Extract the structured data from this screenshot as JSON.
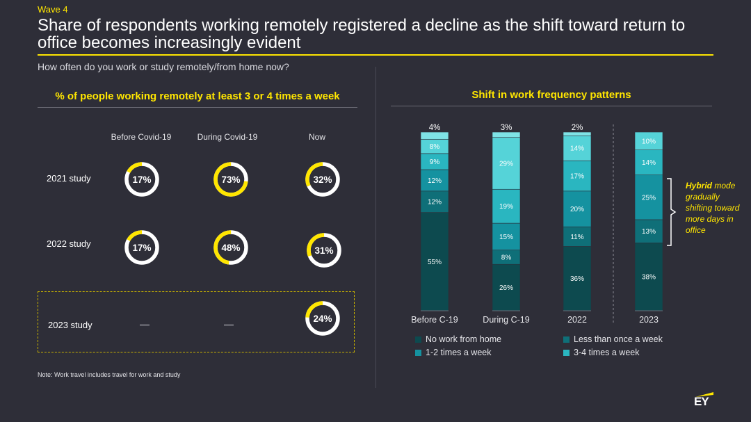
{
  "wave": "Wave 4",
  "title": "Share of respondents working remotely registered a decline as the shift toward return to office becomes increasingly evident",
  "question": "How often do you work or study remotely/from home now?",
  "left_panel": {
    "title": "% of people working remotely at least 3 or 4 times a week",
    "columns": [
      "Before Covid-19",
      "During Covid-19",
      "Now"
    ],
    "rows": [
      {
        "label": "2021 study",
        "values": [
          "17%",
          "73%",
          "32%"
        ],
        "fractions": [
          0.17,
          0.73,
          0.32
        ]
      },
      {
        "label": "2022 study",
        "values": [
          "17%",
          "48%",
          "31%"
        ],
        "fractions": [
          0.17,
          0.48,
          0.31
        ]
      },
      {
        "label": "2023 study",
        "values": [
          "—",
          "—",
          "24%"
        ],
        "fractions": [
          null,
          null,
          0.24
        ]
      }
    ]
  },
  "note": "Note: Work travel includes travel for work and study",
  "right_panel": {
    "title": "Shift in work frequency patterns",
    "hybrid_note_bold": "Hybrid",
    "hybrid_note_rest": "mode gradually shifting toward more days in office"
  },
  "colors": {
    "background": "#2e2e38",
    "accent": "#ffe600",
    "no_work_from_home": "#0d4a4f",
    "less_than_once_a_week": "#0f6f78",
    "one_two_times": "#1592a0",
    "three_four_times": "#2ab6c0",
    "top_segment": "#55d3d8",
    "ring_track": "#ffffff"
  },
  "chart_data": {
    "type": "bar",
    "stacked": true,
    "categories": [
      "Before C-19",
      "During C-19",
      "2022",
      "2023"
    ],
    "series": [
      {
        "name": "No work from home",
        "values": [
          55,
          26,
          36,
          38
        ],
        "labels": [
          "55%",
          "26%",
          "36%",
          "38%"
        ],
        "color": "#0d4a4f"
      },
      {
        "name": "Less than once a week",
        "values": [
          12,
          8,
          11,
          13
        ],
        "labels": [
          "12%",
          "8%",
          "11%",
          "13%"
        ],
        "color": "#0f6f78"
      },
      {
        "name": "1-2 times a week",
        "values": [
          12,
          15,
          20,
          25
        ],
        "labels": [
          "12%",
          "15%",
          "20%",
          "25%"
        ],
        "color": "#1592a0"
      },
      {
        "name": "3-4 times a week",
        "values": [
          9,
          19,
          17,
          14
        ],
        "labels": [
          "9%",
          "19%",
          "17%",
          "14%"
        ],
        "color": "#2ab6c0"
      },
      {
        "values": [
          8,
          29,
          14,
          10
        ],
        "labels": [
          "8%",
          "29%",
          "14%",
          "10%"
        ],
        "color": "#55d3d8"
      },
      {
        "values": [
          4,
          3,
          2,
          0
        ],
        "labels": [
          "4%",
          "3%",
          "2%",
          ""
        ],
        "color": "#7fe3e6"
      }
    ],
    "legend": [
      "No work from home",
      "Less than once a week",
      "1-2 times a week",
      "3-4 times a week"
    ],
    "legend_position": "bottom",
    "ylim": [
      0,
      100
    ],
    "grid": false,
    "xlabel": "",
    "ylabel": ""
  }
}
